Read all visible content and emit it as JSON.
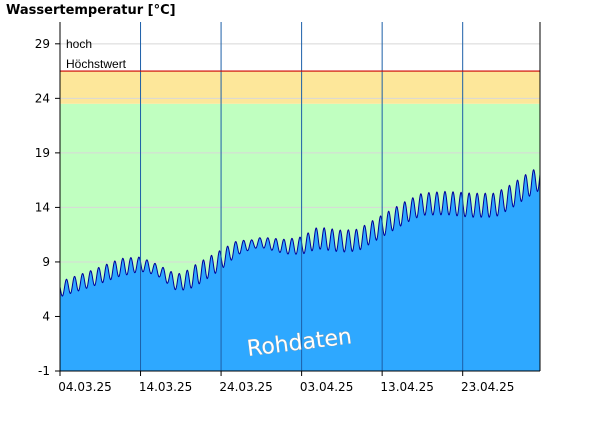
{
  "chart_data": {
    "type": "area",
    "title": "Wassertemperatur [°C]",
    "xlabel": "",
    "ylabel": "",
    "ylim": [
      -1,
      31
    ],
    "y_ticks": [
      -1,
      4,
      9,
      14,
      19,
      24,
      29
    ],
    "x_ticks": [
      "04.03.25",
      "14.03.25",
      "24.03.25",
      "03.04.25",
      "13.04.25",
      "23.04.25"
    ],
    "x_range_days": [
      0,
      59.6
    ],
    "x_tick_days": [
      0,
      10,
      20,
      30,
      40,
      50
    ],
    "grid": true,
    "bands": [
      {
        "label": "Höchstwert",
        "from": 26.5,
        "to": 26.5,
        "color": "#cc0000"
      },
      {
        "label": "hoch",
        "from": 23.5,
        "to": 26.5,
        "color": "#fde79a"
      },
      {
        "label": "",
        "from": -1,
        "to": 23.5,
        "color": "#c0ffc0"
      }
    ],
    "series": [
      {
        "fill": "#2ea8ff",
        "line": "#00009a",
        "trend": [
          {
            "day": 0,
            "value": 6.5
          },
          {
            "day": 4,
            "value": 7.5
          },
          {
            "day": 7.5,
            "value": 8.5
          },
          {
            "day": 10,
            "value": 8.8
          },
          {
            "day": 12,
            "value": 8.3
          },
          {
            "day": 14.5,
            "value": 7.1
          },
          {
            "day": 16,
            "value": 7.4
          },
          {
            "day": 18,
            "value": 8.3
          },
          {
            "day": 20,
            "value": 9.2
          },
          {
            "day": 22,
            "value": 10.3
          },
          {
            "day": 25,
            "value": 10.8
          },
          {
            "day": 28,
            "value": 10.4
          },
          {
            "day": 30,
            "value": 10.5
          },
          {
            "day": 32,
            "value": 11.2
          },
          {
            "day": 35,
            "value": 10.9
          },
          {
            "day": 37,
            "value": 11.0
          },
          {
            "day": 40,
            "value": 12.3
          },
          {
            "day": 43,
            "value": 13.6
          },
          {
            "day": 45,
            "value": 14.3
          },
          {
            "day": 48,
            "value": 14.4
          },
          {
            "day": 51,
            "value": 14.2
          },
          {
            "day": 54,
            "value": 14.2
          },
          {
            "day": 56,
            "value": 15.0
          },
          {
            "day": 58,
            "value": 16.0
          },
          {
            "day": 59.6,
            "value": 16.7
          }
        ],
        "daily_amplitude": [
          {
            "day": 0,
            "value": 0.7
          },
          {
            "day": 8,
            "value": 0.8
          },
          {
            "day": 12,
            "value": 0.5
          },
          {
            "day": 17,
            "value": 1.0
          },
          {
            "day": 20,
            "value": 0.9
          },
          {
            "day": 24,
            "value": 0.4
          },
          {
            "day": 30,
            "value": 0.8
          },
          {
            "day": 32,
            "value": 1.0
          },
          {
            "day": 38,
            "value": 1.0
          },
          {
            "day": 44,
            "value": 1.0
          },
          {
            "day": 50,
            "value": 1.1
          },
          {
            "day": 59.6,
            "value": 1.1
          }
        ]
      }
    ],
    "annotations": [
      "Rohdaten"
    ]
  }
}
